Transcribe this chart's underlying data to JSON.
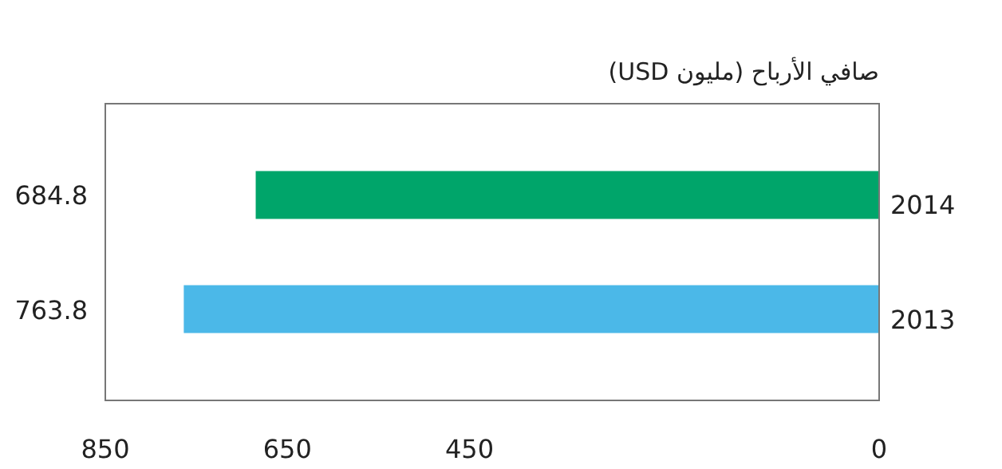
{
  "chart_data": {
    "type": "bar",
    "orientation": "horizontal",
    "title": "صافي الأرباح (مليون USD)",
    "categories": [
      "2014",
      "2013"
    ],
    "values": [
      684.8,
      763.8
    ],
    "colors": [
      "#00a56a",
      "#4bb8e8"
    ],
    "data_labels": true,
    "xlim": [
      850,
      0
    ],
    "xticks": [
      850,
      650,
      450,
      0
    ],
    "grid": false
  }
}
